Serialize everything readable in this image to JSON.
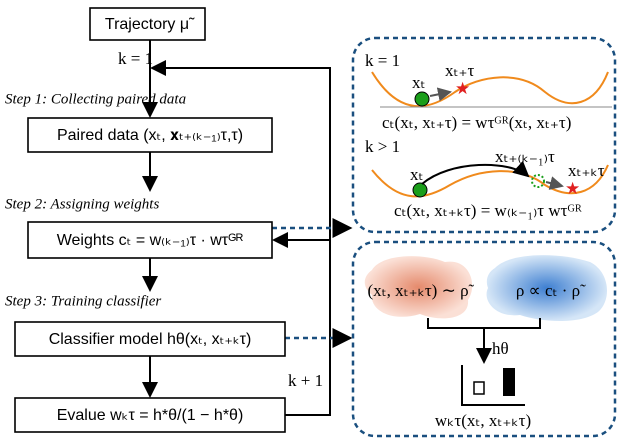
{
  "flow": {
    "nodes": [
      {
        "label": "Trajectory μ̃"
      },
      {
        "label": "Paired data (xₜ, 𝐱ₜ₊₍ₖ₋₁₎τ,τ)"
      },
      {
        "label": "Weights cₜ = w₍ₖ₋₁₎τ · wτᴳᴿ"
      },
      {
        "label": "Classifier model hθ(xₜ, xₜ₊ₖτ)"
      },
      {
        "label": "Evalue wₖτ = h*θ/(1 − h*θ)"
      }
    ],
    "steps": [
      "Step 1: Collecting paired data",
      "Step 2: Assigning weights",
      "Step 3: Training classifier"
    ],
    "loop_labels": [
      "k = 1",
      "k + 1"
    ]
  },
  "panel_top": {
    "case1": {
      "condition": "k = 1",
      "point_labels": [
        "xₜ",
        "xₜ₊τ"
      ],
      "formula": "cₜ(xₜ, xₜ₊τ) = wτᴳᴿ(xₜ, xₜ₊τ)"
    },
    "case2": {
      "condition": "k > 1",
      "point_labels": [
        "xₜ",
        "xₜ₊₍ₖ₋₁₎τ",
        "xₜ₊ₖτ"
      ],
      "formula": "cₜ(xₜ, xₜ₊ₖτ) = w₍ₖ₋₁₎τ wτᴳᴿ"
    }
  },
  "panel_bottom": {
    "left_distribution": "(xₜ, xₜ₊ₖτ) ∼ ρ̃",
    "right_distribution": "ρ ∝ cₜ · ρ̃",
    "classifier": "hθ",
    "output": "wₖτ(xₜ, xₜ₊ₖτ)"
  }
}
